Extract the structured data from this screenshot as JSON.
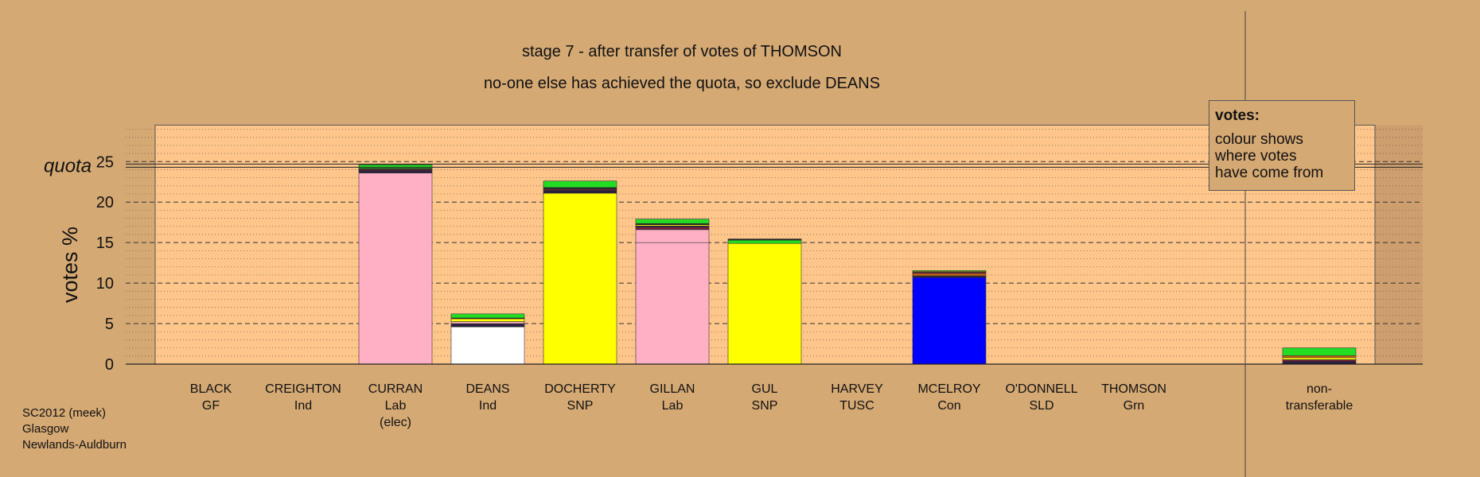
{
  "chart_data": {
    "type": "bar",
    "stacked": true,
    "title": "stage 7 - after transfer of votes of THOMSON",
    "subtitle": "no-one else has achieved the quota, so exclude DEANS",
    "ylabel": "votes %",
    "ylim": [
      0,
      29.5
    ],
    "yticks": [
      "0",
      "5",
      "10",
      "15",
      "20",
      "25"
    ],
    "quota": 24.5,
    "quota_label": "quota",
    "grid": true,
    "categories": [
      {
        "name": "BLACK",
        "party": "GF",
        "note": "",
        "segments": []
      },
      {
        "name": "CREIGHTON",
        "party": "Ind",
        "note": "",
        "segments": []
      },
      {
        "name": "CURRAN",
        "party": "Lab",
        "note": "(elec)",
        "segments": [
          {
            "color": "#ffb0c4",
            "value": 23.6
          },
          {
            "color": "#2a1f3d",
            "value": 0.3
          },
          {
            "color": "#7a1e3e",
            "value": 0.15
          },
          {
            "color": "#222222",
            "value": 0.1
          },
          {
            "color": "#22dd22",
            "value": 0.45
          }
        ]
      },
      {
        "name": "DEANS",
        "party": "Ind",
        "note": "",
        "segments": [
          {
            "color": "#ffffff",
            "value": 4.6
          },
          {
            "color": "#2a1f3d",
            "value": 0.4
          },
          {
            "color": "#ffb0c4",
            "value": 0.25
          },
          {
            "color": "#ffff00",
            "value": 0.35
          },
          {
            "color": "#222222",
            "value": 0.1
          },
          {
            "color": "#22dd22",
            "value": 0.5
          }
        ]
      },
      {
        "name": "DOCHERTY",
        "party": "SNP",
        "note": "",
        "segments": [
          {
            "color": "#ffff00",
            "value": 21.1
          },
          {
            "color": "#2a1f3d",
            "value": 0.35
          },
          {
            "color": "#7a1e3e",
            "value": 0.15
          },
          {
            "color": "#222222",
            "value": 0.2
          },
          {
            "color": "#22dd22",
            "value": 0.8
          }
        ]
      },
      {
        "name": "GILLAN",
        "party": "Lab",
        "note": "",
        "segments": [
          {
            "color": "#ffb0c4",
            "value": 15.0
          },
          {
            "color": "#ffb0c4",
            "value": 1.6
          },
          {
            "color": "#7a1e3e",
            "value": 0.3
          },
          {
            "color": "#2a1f3d",
            "value": 0.15
          },
          {
            "color": "#ffff00",
            "value": 0.15
          },
          {
            "color": "#222222",
            "value": 0.15
          },
          {
            "color": "#22dd22",
            "value": 0.55
          }
        ]
      },
      {
        "name": "GUL",
        "party": "SNP",
        "note": "",
        "segments": [
          {
            "color": "#ffff00",
            "value": 14.9
          },
          {
            "color": "#22dd22",
            "value": 0.4
          },
          {
            "color": "#222222",
            "value": 0.15
          }
        ]
      },
      {
        "name": "HARVEY",
        "party": "TUSC",
        "note": "",
        "segments": []
      },
      {
        "name": "MCELROY",
        "party": "Con",
        "note": "",
        "segments": [
          {
            "color": "#0000ff",
            "value": 10.7
          },
          {
            "color": "#2a1f3d",
            "value": 0.2
          },
          {
            "color": "#cc6611",
            "value": 0.3
          },
          {
            "color": "#7a1e3e",
            "value": 0.15
          },
          {
            "color": "#ffff00",
            "value": 0.1
          },
          {
            "color": "#22dd22",
            "value": 0.1
          }
        ]
      },
      {
        "name": "O'DONNELL",
        "party": "SLD",
        "note": "",
        "segments": []
      },
      {
        "name": "THOMSON",
        "party": "Grn",
        "note": "",
        "segments": []
      },
      {
        "name": "non-",
        "party": "transferable",
        "note": "",
        "segments": [
          {
            "color": "#2a1f3d",
            "value": 0.35
          },
          {
            "color": "#7a1e3e",
            "value": 0.2
          },
          {
            "color": "#ffff00",
            "value": 0.25
          },
          {
            "color": "#cc6611",
            "value": 0.25
          },
          {
            "color": "#22dd22",
            "value": 0.95
          }
        ]
      }
    ]
  },
  "legend": {
    "title": "votes:",
    "lines": [
      "colour shows",
      "where votes",
      "have come from"
    ]
  },
  "footer": {
    "lines": [
      "SC2012 (meek)",
      "Glasgow",
      "Newlands-Auldburn"
    ]
  },
  "colors": {
    "background": "#d5a974",
    "plot_fill": "#fec68b"
  }
}
